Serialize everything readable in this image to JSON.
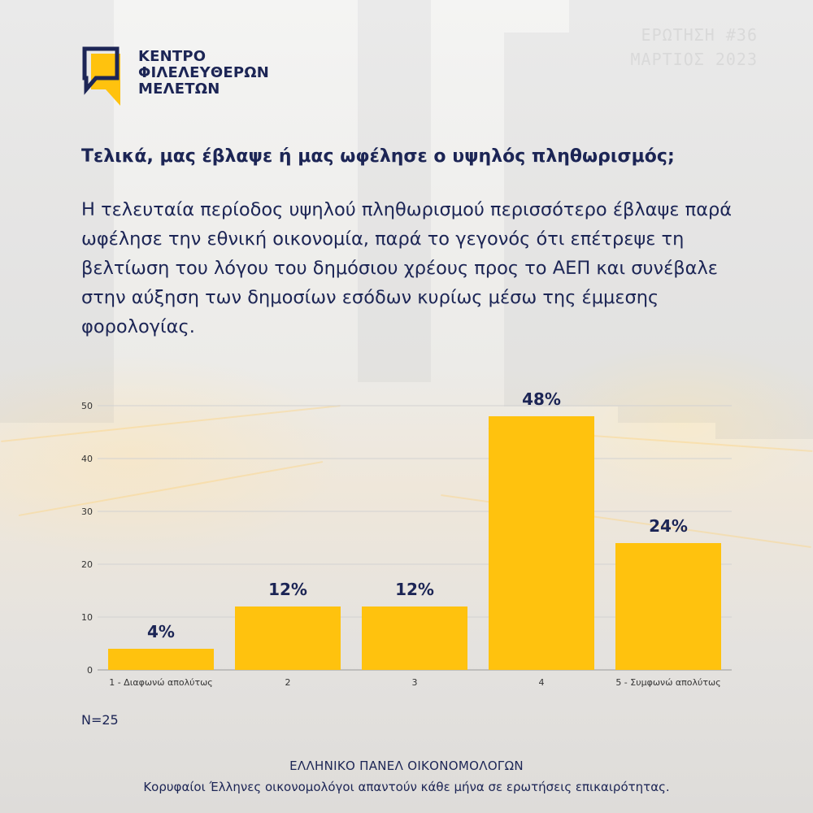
{
  "logo": {
    "line1": "ΚΕΝΤΡΟ",
    "line2": "ΦΙΛΕΛΕΥΘΕΡΩΝ",
    "line3": "ΜΕΛΕΤΩΝ"
  },
  "issue": {
    "number": "ΕΡΩΤΗΣΗ #36",
    "date": "ΜΑΡΤΙΟΣ 2023"
  },
  "question": "Τελικά, μας έβλαψε ή μας ωφέλησε ο υψηλός πληθωρισμός;",
  "answer": "Η τελευταία περίοδος υψηλού πληθωρισμού περισσότερο έβλαψε παρά ωφέλησε την εθνική οικονομία, παρά το γεγονός ότι επέτρεψε τη βελτίωση του λόγου του δημόσιου χρέους προς το ΑΕΠ και συνέβαλε στην αύξηση των δημοσίων εσόδων κυρίως μέσω της έμμεσης φορολογίας.",
  "sample_size": "N=25",
  "footer": {
    "title": "ΕΛΛΗΝΙΚΟ ΠΑΝΕΛ ΟΙΚΟΝΟΜΟΛΟΓΩΝ",
    "subtitle": "Κορυφαίοι Έλληνες οικονομολόγοι απαντούν κάθε μήνα σε ερωτήσεις επικαιρότητας."
  },
  "colors": {
    "bar": "#ffc20e",
    "text": "#1c2555",
    "grid": "#d2d2d2",
    "logo_accent": "#ffc20e"
  },
  "chart_data": {
    "type": "bar",
    "categories": [
      "1 - Διαφωνώ απολύτως",
      "2",
      "3",
      "4",
      "5 - Συμφωνώ απολύτως"
    ],
    "values": [
      4,
      12,
      12,
      48,
      24
    ],
    "data_labels": [
      "4%",
      "12%",
      "12%",
      "48%",
      "24%"
    ],
    "yticks": [
      "0",
      "10",
      "20",
      "30",
      "40",
      "50"
    ],
    "ylim": [
      0,
      50
    ],
    "grid": true,
    "legend": "none"
  }
}
